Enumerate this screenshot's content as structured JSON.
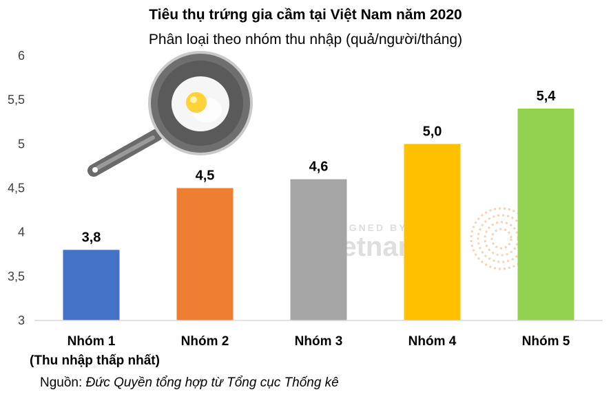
{
  "chart_data": {
    "type": "bar",
    "title": "Tiêu thụ trứng gia cầm tại Việt Nam năm 2020",
    "subtitle": "Phân loại theo nhóm thu nhập (quả/người/tháng)",
    "categories": [
      "Nhóm 1",
      "Nhóm 2",
      "Nhóm 3",
      "Nhóm 4",
      "Nhóm 5"
    ],
    "category_notes": [
      "(Thu nhập thấp nhất)",
      "",
      "",
      "",
      ""
    ],
    "values": [
      3.8,
      4.5,
      4.6,
      5.0,
      5.4
    ],
    "value_labels": [
      "3,8",
      "4,5",
      "4,6",
      "5,0",
      "5,4"
    ],
    "colors": [
      "#4472C4",
      "#ED7D31",
      "#A5A5A5",
      "#FFC000",
      "#92D050"
    ],
    "ylim": [
      3,
      6
    ],
    "y_ticks": [
      3,
      3.5,
      4,
      4.5,
      5,
      5.5,
      6
    ],
    "y_tick_labels": [
      "3",
      "3,5",
      "4",
      "4,5",
      "5",
      "5,5",
      "6"
    ],
    "grid": false,
    "legend": "none"
  },
  "source": {
    "prefix": "Nguồn: ",
    "text": "Đức Quyền tổng hợp từ Tổng cục Thống kê"
  },
  "watermark": {
    "line1": "DESIGNED BY",
    "brand": "vietnambiz"
  },
  "decoration": {
    "icon": "frying-pan-egg-icon"
  }
}
